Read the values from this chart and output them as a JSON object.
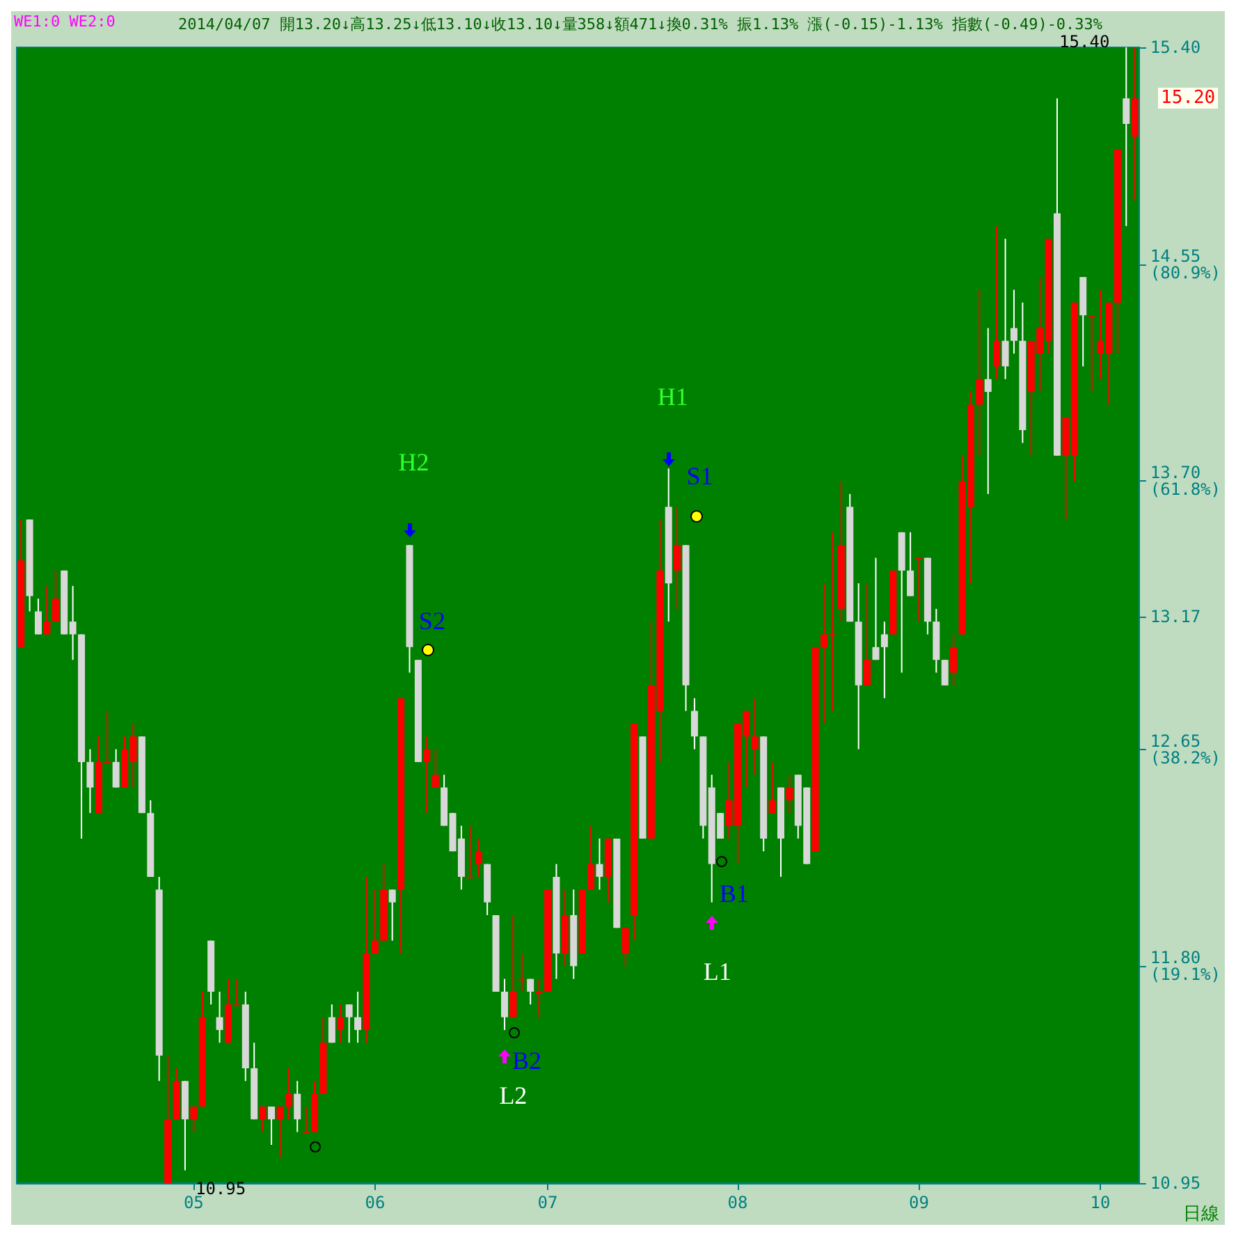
{
  "chart_data": {
    "type": "candlestick",
    "subtitle": "2014/04/07 開13.20↓高13.25↓低13.10↓收13.10↓量358↓額471↓換0.31% 振1.13% 漲(-0.15)-1.13% 指數(-0.49)-0.33%",
    "categories": [
      null,
      null,
      null,
      null,
      null,
      null,
      null,
      null,
      null,
      null,
      null,
      null,
      null,
      null,
      null,
      null,
      null,
      null,
      null,
      null,
      "05",
      null,
      null,
      null,
      null,
      null,
      null,
      null,
      null,
      null,
      null,
      null,
      null,
      null,
      null,
      null,
      null,
      null,
      null,
      null,
      null,
      "06",
      null,
      null,
      null,
      null,
      null,
      null,
      null,
      null,
      null,
      null,
      null,
      null,
      null,
      null,
      null,
      null,
      null,
      null,
      null,
      "07",
      null,
      null,
      null,
      null,
      null,
      null,
      null,
      null,
      null,
      null,
      null,
      null,
      null,
      null,
      null,
      null,
      null,
      null,
      null,
      null,
      null,
      "08",
      null,
      null,
      null,
      null,
      null,
      null,
      null,
      null,
      null,
      null,
      null,
      null,
      null,
      null,
      null,
      null,
      null,
      null,
      null,
      null,
      "09",
      null,
      null,
      null,
      null,
      null,
      null,
      null,
      null,
      null,
      null,
      null,
      null,
      null,
      null,
      null,
      null,
      null,
      null,
      null,
      null,
      "10",
      null,
      null,
      null,
      null
    ],
    "ohlc": [
      [
        13.05,
        13.55,
        13.05,
        13.39
      ],
      [
        13.55,
        13.55,
        13.19,
        13.25
      ],
      [
        13.19,
        13.24,
        13.1,
        13.1
      ],
      [
        13.1,
        13.29,
        13.1,
        13.15
      ],
      [
        13.15,
        13.35,
        13.15,
        13.24
      ],
      [
        13.35,
        13.35,
        13.1,
        13.1
      ],
      [
        13.15,
        13.29,
        13.0,
        13.1
      ],
      [
        13.1,
        13.1,
        12.3,
        12.6
      ],
      [
        12.6,
        12.65,
        12.4,
        12.5
      ],
      [
        12.4,
        12.7,
        12.4,
        12.6
      ],
      [
        12.6,
        12.8,
        12.6,
        12.6
      ],
      [
        12.6,
        12.65,
        12.5,
        12.5
      ],
      [
        12.5,
        12.7,
        12.5,
        12.65
      ],
      [
        12.6,
        12.75,
        12.5,
        12.7
      ],
      [
        12.7,
        12.7,
        12.4,
        12.4
      ],
      [
        12.4,
        12.45,
        12.15,
        12.15
      ],
      [
        12.1,
        12.15,
        11.35,
        11.45
      ],
      [
        10.95,
        11.45,
        10.95,
        11.2
      ],
      [
        11.2,
        11.4,
        11.2,
        11.35
      ],
      [
        11.35,
        11.35,
        11.0,
        11.2
      ],
      [
        11.2,
        11.25,
        11.15,
        11.25
      ],
      [
        11.25,
        11.7,
        11.25,
        11.6
      ],
      [
        11.9,
        11.9,
        11.65,
        11.7
      ],
      [
        11.6,
        11.7,
        11.5,
        11.55
      ],
      [
        11.5,
        11.75,
        11.5,
        11.65
      ],
      [
        11.65,
        11.75,
        11.65,
        11.65
      ],
      [
        11.65,
        11.7,
        11.35,
        11.4
      ],
      [
        11.4,
        11.5,
        11.2,
        11.2
      ],
      [
        11.2,
        11.25,
        11.15,
        11.25
      ],
      [
        11.25,
        11.25,
        11.1,
        11.2
      ],
      [
        11.2,
        11.25,
        11.05,
        11.25
      ],
      [
        11.25,
        11.4,
        11.2,
        11.3
      ],
      [
        11.3,
        11.35,
        11.15,
        11.2
      ],
      [
        11.15,
        11.25,
        11.15,
        11.15
      ],
      [
        11.15,
        11.35,
        11.15,
        11.3
      ],
      [
        11.3,
        11.6,
        11.3,
        11.5
      ],
      [
        11.6,
        11.65,
        11.5,
        11.5
      ],
      [
        11.55,
        11.65,
        11.5,
        11.6
      ],
      [
        11.65,
        11.65,
        11.5,
        11.6
      ],
      [
        11.6,
        11.7,
        11.5,
        11.55
      ],
      [
        11.55,
        12.15,
        11.5,
        11.85
      ],
      [
        11.85,
        12.1,
        11.85,
        11.9
      ],
      [
        11.9,
        12.2,
        11.9,
        12.1
      ],
      [
        12.1,
        12.1,
        11.9,
        12.05
      ],
      [
        12.1,
        12.85,
        11.85,
        12.85
      ],
      [
        13.45,
        13.45,
        12.95,
        13.05
      ],
      [
        13.0,
        13.0,
        12.6,
        12.6
      ],
      [
        12.6,
        12.7,
        12.4,
        12.65
      ],
      [
        12.5,
        12.65,
        12.5,
        12.55
      ],
      [
        12.5,
        12.55,
        12.35,
        12.35
      ],
      [
        12.4,
        12.4,
        12.25,
        12.25
      ],
      [
        12.3,
        12.35,
        12.1,
        12.15
      ],
      [
        12.15,
        12.35,
        12.15,
        12.15
      ],
      [
        12.2,
        12.3,
        12.15,
        12.25
      ],
      [
        12.2,
        12.2,
        12.0,
        12.05
      ],
      [
        12.0,
        12.0,
        11.7,
        11.7
      ],
      [
        11.7,
        11.75,
        11.55,
        11.6
      ],
      [
        11.6,
        12.0,
        11.6,
        11.7
      ],
      [
        11.75,
        11.85,
        11.7,
        11.75
      ],
      [
        11.75,
        11.75,
        11.65,
        11.7
      ],
      [
        11.7,
        11.75,
        11.6,
        11.7
      ],
      [
        11.7,
        12.1,
        11.7,
        12.1
      ],
      [
        12.15,
        12.2,
        11.75,
        11.85
      ],
      [
        11.85,
        12.1,
        11.8,
        12.0
      ],
      [
        12.0,
        12.1,
        11.75,
        11.8
      ],
      [
        11.85,
        12.1,
        11.85,
        12.1
      ],
      [
        12.1,
        12.35,
        12.1,
        12.2
      ],
      [
        12.2,
        12.3,
        12.1,
        12.15
      ],
      [
        12.15,
        12.3,
        12.05,
        12.3
      ],
      [
        12.3,
        12.3,
        11.95,
        11.95
      ],
      [
        11.85,
        11.95,
        11.8,
        11.95
      ],
      [
        12.0,
        12.75,
        11.9,
        12.75
      ],
      [
        12.7,
        12.7,
        12.3,
        12.3
      ],
      [
        12.3,
        13.15,
        12.3,
        12.9
      ],
      [
        12.8,
        13.55,
        12.6,
        13.35
      ],
      [
        13.6,
        13.75,
        13.15,
        13.3
      ],
      [
        13.35,
        13.6,
        13.2,
        13.45
      ],
      [
        13.45,
        13.45,
        12.8,
        12.9
      ],
      [
        12.8,
        12.85,
        12.65,
        12.7
      ],
      [
        12.7,
        12.7,
        12.3,
        12.35
      ],
      [
        12.5,
        12.55,
        12.05,
        12.2
      ],
      [
        12.4,
        12.4,
        12.3,
        12.3
      ],
      [
        12.35,
        12.6,
        12.3,
        12.45
      ],
      [
        12.35,
        12.75,
        12.2,
        12.75
      ],
      [
        12.7,
        12.8,
        12.5,
        12.8
      ],
      [
        12.65,
        12.85,
        12.55,
        12.7
      ],
      [
        12.7,
        12.7,
        12.25,
        12.3
      ],
      [
        12.4,
        12.6,
        12.4,
        12.45
      ],
      [
        12.5,
        12.5,
        12.15,
        12.3
      ],
      [
        12.45,
        12.55,
        12.4,
        12.5
      ],
      [
        12.55,
        12.55,
        12.3,
        12.35
      ],
      [
        12.5,
        12.5,
        12.2,
        12.2
      ],
      [
        12.25,
        13.05,
        12.25,
        13.05
      ],
      [
        13.05,
        13.3,
        12.75,
        13.1
      ],
      [
        13.1,
        13.5,
        12.8,
        13.1
      ],
      [
        13.2,
        13.7,
        13.15,
        13.45
      ],
      [
        13.6,
        13.65,
        13.15,
        13.15
      ],
      [
        13.15,
        13.3,
        12.65,
        12.9
      ],
      [
        12.9,
        13.3,
        12.9,
        13.0
      ],
      [
        13.05,
        13.4,
        13.0,
        13.0
      ],
      [
        13.1,
        13.15,
        12.85,
        13.05
      ],
      [
        13.1,
        13.35,
        13.1,
        13.35
      ],
      [
        13.5,
        13.5,
        12.95,
        13.35
      ],
      [
        13.35,
        13.5,
        13.25,
        13.25
      ],
      [
        13.4,
        13.4,
        13.15,
        13.4
      ],
      [
        13.4,
        13.4,
        13.1,
        13.15
      ],
      [
        13.15,
        13.2,
        12.95,
        13.0
      ],
      [
        13.0,
        13.0,
        12.9,
        12.9
      ],
      [
        12.95,
        13.1,
        12.9,
        13.05
      ],
      [
        13.1,
        13.8,
        13.1,
        13.7
      ],
      [
        13.6,
        14.05,
        13.3,
        14.0
      ],
      [
        14.0,
        14.45,
        13.8,
        14.1
      ],
      [
        14.1,
        14.3,
        13.65,
        14.05
      ],
      [
        14.15,
        14.7,
        14.1,
        14.25
      ],
      [
        14.25,
        14.65,
        14.1,
        14.15
      ],
      [
        14.3,
        14.45,
        14.2,
        14.25
      ],
      [
        14.25,
        14.4,
        13.85,
        13.9
      ],
      [
        14.05,
        14.25,
        13.8,
        14.25
      ],
      [
        14.2,
        14.5,
        14.05,
        14.3
      ],
      [
        14.25,
        14.65,
        14.2,
        14.65
      ],
      [
        14.75,
        15.2,
        13.8,
        13.8
      ],
      [
        13.8,
        13.95,
        13.55,
        13.95
      ],
      [
        13.8,
        14.4,
        13.7,
        14.4
      ],
      [
        14.5,
        14.5,
        14.15,
        14.35
      ],
      [
        14.35,
        14.35,
        14.05,
        14.35
      ],
      [
        14.2,
        14.45,
        14.1,
        14.25
      ],
      [
        14.2,
        14.4,
        14.0,
        14.4
      ],
      [
        14.4,
        15.0,
        14.2,
        15.0
      ],
      [
        15.2,
        15.4,
        14.7,
        15.1
      ],
      [
        15.05,
        15.4,
        14.8,
        15.2
      ]
    ],
    "ylim": [
      10.95,
      15.4
    ],
    "yticks": [
      {
        "value": 10.95,
        "label": "10.95"
      },
      {
        "value": 11.8,
        "label": "11.80\n(19.1%)"
      },
      {
        "value": 12.65,
        "label": "12.65\n(38.2%)"
      },
      {
        "value": 13.17,
        "label": "13.17"
      },
      {
        "value": 13.7,
        "label": "13.70\n(61.8%)"
      },
      {
        "value": 14.55,
        "label": "14.55\n(80.9%)"
      },
      {
        "value": 15.4,
        "label": "15.40"
      }
    ],
    "grid": false,
    "annotations": [
      "H2",
      "S2",
      "B2",
      "L2",
      "H1",
      "S1",
      "B1",
      "L1",
      "15.40",
      "10.95",
      "15.20",
      "WE1:0 WE2:0",
      "日線"
    ]
  }
}
